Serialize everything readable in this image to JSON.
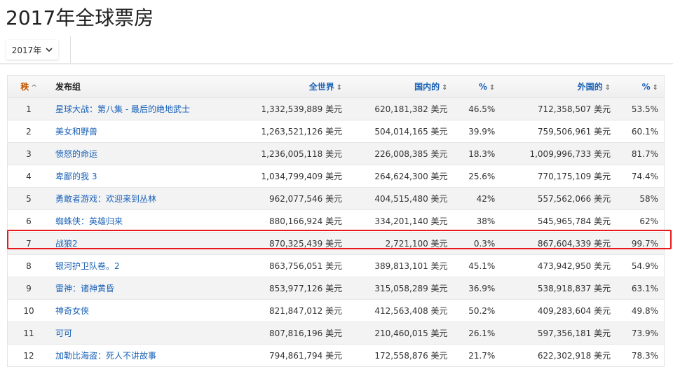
{
  "title": "2017年全球票房",
  "year_selector": {
    "value": "2017年"
  },
  "headers": {
    "rank": "秩",
    "title": "发布组",
    "worldwide": "全世界",
    "domestic": "国内的",
    "domestic_pct": "%",
    "foreign": "外国的",
    "foreign_pct": "%"
  },
  "highlight_color": "#e8191c",
  "highlighted_rank": 7,
  "rows": [
    {
      "rank": "1",
      "title": "星球大战：第八集 - 最后的绝地武士",
      "worldwide": "1,332,539,889 美元",
      "domestic": "620,181,382 美元",
      "domestic_pct": "46.5%",
      "foreign": "712,358,507 美元",
      "foreign_pct": "53.5%"
    },
    {
      "rank": "2",
      "title": "美女和野兽",
      "worldwide": "1,263,521,126 美元",
      "domestic": "504,014,165 美元",
      "domestic_pct": "39.9%",
      "foreign": "759,506,961 美元",
      "foreign_pct": "60.1%"
    },
    {
      "rank": "3",
      "title": "愤怒的命运",
      "worldwide": "1,236,005,118 美元",
      "domestic": "226,008,385 美元",
      "domestic_pct": "18.3%",
      "foreign": "1,009,996,733 美元",
      "foreign_pct": "81.7%"
    },
    {
      "rank": "4",
      "title": "卑鄙的我 3",
      "worldwide": "1,034,799,409 美元",
      "domestic": "264,624,300 美元",
      "domestic_pct": "25.6%",
      "foreign": "770,175,109 美元",
      "foreign_pct": "74.4%"
    },
    {
      "rank": "5",
      "title": "勇敢者游戏：欢迎来到丛林",
      "worldwide": "962,077,546 美元",
      "domestic": "404,515,480 美元",
      "domestic_pct": "42%",
      "foreign": "557,562,066 美元",
      "foreign_pct": "58%"
    },
    {
      "rank": "6",
      "title": "蜘蛛侠：英雄归来",
      "worldwide": "880,166,924 美元",
      "domestic": "334,201,140 美元",
      "domestic_pct": "38%",
      "foreign": "545,965,784 美元",
      "foreign_pct": "62%"
    },
    {
      "rank": "7",
      "title": "战狼2",
      "worldwide": "870,325,439 美元",
      "domestic": "2,721,100 美元",
      "domestic_pct": "0.3%",
      "foreign": "867,604,339 美元",
      "foreign_pct": "99.7%"
    },
    {
      "rank": "8",
      "title": "银河护卫队卷。2",
      "worldwide": "863,756,051 美元",
      "domestic": "389,813,101 美元",
      "domestic_pct": "45.1%",
      "foreign": "473,942,950 美元",
      "foreign_pct": "54.9%"
    },
    {
      "rank": "9",
      "title": "雷神：诸神黄昏",
      "worldwide": "853,977,126 美元",
      "domestic": "315,058,289 美元",
      "domestic_pct": "36.9%",
      "foreign": "538,918,837 美元",
      "foreign_pct": "63.1%"
    },
    {
      "rank": "10",
      "title": "神奇女侠",
      "worldwide": "821,847,012 美元",
      "domestic": "412,563,408 美元",
      "domestic_pct": "50.2%",
      "foreign": "409,283,604 美元",
      "foreign_pct": "49.8%"
    },
    {
      "rank": "11",
      "title": "可可",
      "worldwide": "807,816,196 美元",
      "domestic": "210,460,015 美元",
      "domestic_pct": "26.1%",
      "foreign": "597,356,181 美元",
      "foreign_pct": "73.9%"
    },
    {
      "rank": "12",
      "title": "加勒比海盗：死人不讲故事",
      "worldwide": "794,861,794 美元",
      "domestic": "172,558,876 美元",
      "domestic_pct": "21.7%",
      "foreign": "622,302,918 美元",
      "foreign_pct": "78.3%"
    }
  ]
}
